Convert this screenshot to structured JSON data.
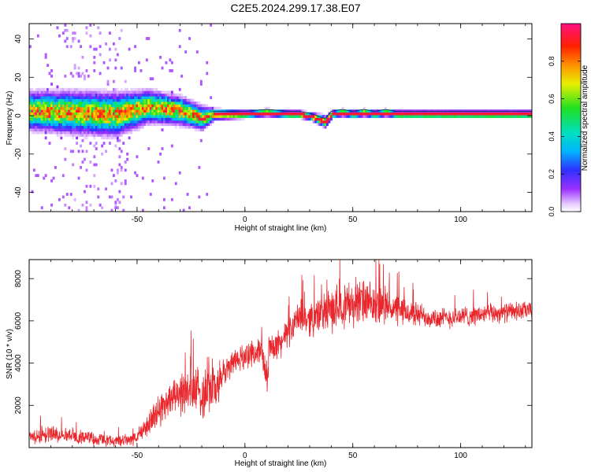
{
  "title": "C2E5.2024.299.17.38.E07",
  "chart_data": [
    {
      "type": "heatmap",
      "xlabel": "Height of straight line (km)",
      "ylabel": "Frequency (Hz)",
      "xlim": [
        -100,
        133
      ],
      "ylim": [
        -50,
        48
      ],
      "xticks": [
        -50,
        0,
        50,
        100
      ],
      "yticks": [
        -40,
        -20,
        0,
        20,
        40
      ],
      "colorbar": {
        "label": "Normalized spectral amplitude",
        "range": [
          0,
          1
        ],
        "ticks": [
          0.0,
          0.2,
          0.4,
          0.6,
          0.8
        ]
      },
      "ridge": {
        "description": "dominant frequency trace",
        "x": [
          -100,
          -80,
          -60,
          -45,
          -30,
          -20,
          -15,
          0,
          10,
          20,
          25,
          30,
          35,
          37,
          40,
          45,
          50,
          55,
          60,
          65,
          70,
          80,
          100,
          133
        ],
        "y": [
          2,
          1,
          0,
          4,
          2,
          -2,
          0,
          0,
          1,
          0,
          0,
          -1,
          -3,
          -4,
          0,
          1,
          0,
          1,
          0,
          1,
          0,
          0,
          0,
          0
        ],
        "spread_hz": [
          8,
          9,
          9,
          7,
          6,
          5,
          3,
          2,
          2,
          2,
          2,
          2,
          3,
          3,
          2,
          2,
          2,
          2,
          2,
          2,
          2,
          2,
          2,
          2
        ]
      }
    },
    {
      "type": "line",
      "xlabel": "Height of straight line (km)",
      "ylabel": "SNR (10 * v/v)",
      "xlim": [
        -100,
        133
      ],
      "ylim": [
        0,
        8900
      ],
      "xticks": [
        -50,
        0,
        50,
        100
      ],
      "yticks": [
        2000,
        4000,
        6000,
        8000
      ],
      "color": "#e8262b",
      "series": [
        {
          "x": [
            -100,
            -90,
            -80,
            -70,
            -60,
            -50,
            -45,
            -40,
            -35,
            -30,
            -25,
            -20,
            -17,
            -15,
            -12,
            -10,
            -5,
            0,
            5,
            8,
            9,
            10,
            11,
            12,
            15,
            20,
            25,
            30,
            35,
            40,
            45,
            50,
            55,
            60,
            65,
            70,
            80,
            90,
            100,
            110,
            120,
            133
          ],
          "values": [
            500,
            650,
            600,
            400,
            300,
            450,
            1100,
            1700,
            2400,
            2500,
            2700,
            2500,
            3200,
            2800,
            3000,
            3500,
            4100,
            4300,
            4600,
            4400,
            4000,
            3000,
            4200,
            4900,
            4800,
            5400,
            6200,
            6100,
            6300,
            6500,
            6800,
            6800,
            6900,
            6600,
            6800,
            6500,
            6300,
            6100,
            6200,
            6300,
            6400,
            6500
          ],
          "noise": [
            450,
            450,
            400,
            350,
            300,
            400,
            700,
            900,
            1000,
            1100,
            1300,
            1500,
            2000,
            1500,
            1200,
            900,
            700,
            700,
            700,
            800,
            800,
            800,
            800,
            800,
            800,
            800,
            900,
            1000,
            1000,
            1200,
            1300,
            1300,
            1300,
            1200,
            1000,
            900,
            700,
            600,
            600,
            550,
            550,
            500
          ]
        }
      ]
    }
  ]
}
